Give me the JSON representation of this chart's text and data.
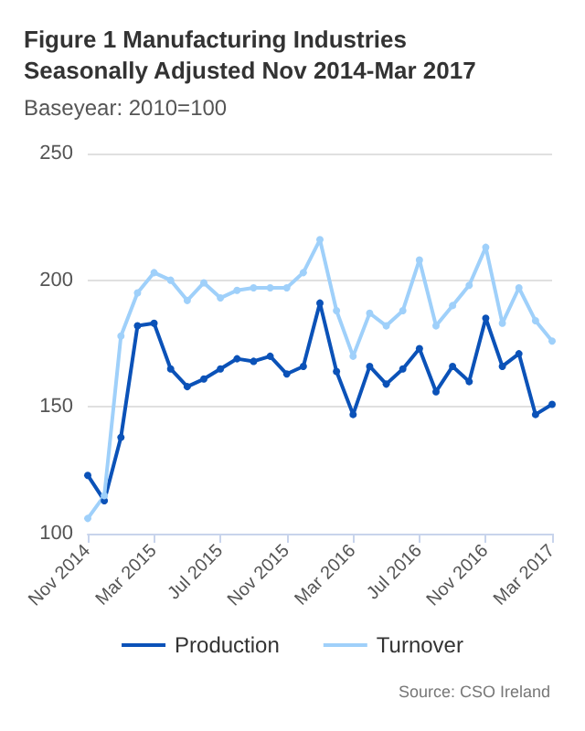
{
  "chart_data": {
    "type": "line",
    "title": "Figure 1 Manufacturing Industries Seasonally Adjusted Nov 2014-Mar 2017",
    "subtitle": "Baseyear: 2010=100",
    "annotations": [
      "Source: CSO Ireland"
    ],
    "categories": [
      "Nov 2014",
      null,
      null,
      null,
      "Mar 2015",
      null,
      null,
      null,
      "Jul 2015",
      null,
      null,
      null,
      "Nov 2015",
      null,
      null,
      null,
      "Mar 2016",
      null,
      null,
      null,
      "Jul 2016",
      null,
      null,
      null,
      "Nov 2016",
      null,
      null,
      null,
      "Mar 2017"
    ],
    "series": [
      {
        "name": "Production",
        "color": "#0b52b8",
        "values": [
          123,
          113,
          138,
          182,
          183,
          165,
          158,
          161,
          165,
          169,
          168,
          170,
          163,
          166,
          191,
          164,
          147,
          166,
          159,
          165,
          173,
          156,
          166,
          160,
          185,
          166,
          171,
          147,
          151
        ]
      },
      {
        "name": "Turnover",
        "color": "#9fd0fa",
        "values": [
          106,
          115,
          178,
          195,
          203,
          200,
          192,
          199,
          193,
          196,
          197,
          197,
          197,
          203,
          216,
          188,
          170,
          187,
          182,
          188,
          208,
          182,
          190,
          198,
          213,
          183,
          197,
          184,
          176
        ]
      }
    ],
    "ylim": [
      100,
      250
    ],
    "yticks": [
      100,
      150,
      200,
      250
    ],
    "grid": "y",
    "legend": "bottom",
    "marker": "circle",
    "line_style": "solid"
  }
}
